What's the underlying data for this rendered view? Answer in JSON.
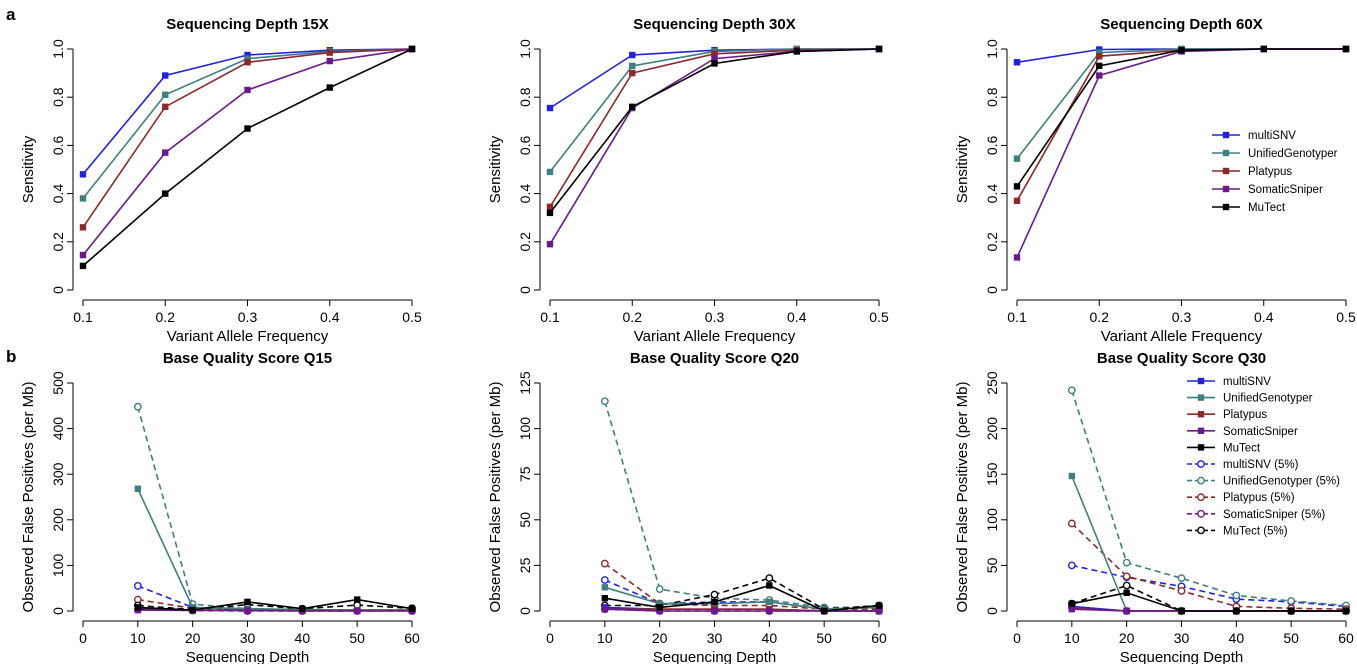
{
  "figure": {
    "panel_a_letter": "a",
    "panel_b_letter": "b"
  },
  "colors": {
    "multiSNV": "#2222dd",
    "UnifiedGenotyper": "#3f7f7f",
    "Platypus": "#8b2a2a",
    "SomaticSniper": "#6a1a8a",
    "MuTect": "#000000"
  },
  "chart_data": [
    {
      "type": "line",
      "title": "Sequencing Depth 15X",
      "xlabel": "Variant Allele Frequency",
      "ylabel": "Sensitivity",
      "x": [
        0.1,
        0.2,
        0.3,
        0.4,
        0.5
      ],
      "xticks": [
        "0.1",
        "0.2",
        "0.3",
        "0.4",
        "0.5"
      ],
      "xlim": [
        0.1,
        0.5
      ],
      "ylim": [
        0,
        1.0
      ],
      "yticks": [
        "0",
        "0.2",
        "0.4",
        "0.6",
        "0.8",
        "1.0"
      ],
      "legend": false,
      "series": [
        {
          "name": "multiSNV",
          "values": [
            0.48,
            0.89,
            0.975,
            0.995,
            1.0
          ]
        },
        {
          "name": "UnifiedGenotyper",
          "values": [
            0.38,
            0.81,
            0.96,
            0.99,
            1.0
          ]
        },
        {
          "name": "Platypus",
          "values": [
            0.26,
            0.76,
            0.945,
            0.985,
            1.0
          ]
        },
        {
          "name": "SomaticSniper",
          "values": [
            0.145,
            0.57,
            0.83,
            0.95,
            1.0
          ]
        },
        {
          "name": "MuTect",
          "values": [
            0.1,
            0.4,
            0.67,
            0.84,
            1.0
          ]
        }
      ]
    },
    {
      "type": "line",
      "title": "Sequencing Depth 30X",
      "xlabel": "Variant Allele Frequency",
      "ylabel": "Sensitivity",
      "x": [
        0.1,
        0.2,
        0.3,
        0.4,
        0.5
      ],
      "xticks": [
        "0.1",
        "0.2",
        "0.3",
        "0.4",
        "0.5"
      ],
      "xlim": [
        0.1,
        0.5
      ],
      "ylim": [
        0,
        1.0
      ],
      "yticks": [
        "0",
        "0.2",
        "0.4",
        "0.6",
        "0.8",
        "1.0"
      ],
      "legend": false,
      "series": [
        {
          "name": "multiSNV",
          "values": [
            0.755,
            0.975,
            0.995,
            1.0,
            1.0
          ]
        },
        {
          "name": "UnifiedGenotyper",
          "values": [
            0.49,
            0.93,
            0.99,
            1.0,
            1.0
          ]
        },
        {
          "name": "Platypus",
          "values": [
            0.345,
            0.9,
            0.98,
            0.995,
            1.0
          ]
        },
        {
          "name": "SomaticSniper",
          "values": [
            0.19,
            0.755,
            0.96,
            0.99,
            1.0
          ]
        },
        {
          "name": "MuTect",
          "values": [
            0.32,
            0.76,
            0.94,
            0.99,
            1.0
          ]
        }
      ]
    },
    {
      "type": "line",
      "title": "Sequencing Depth 60X",
      "xlabel": "Variant Allele Frequency",
      "ylabel": "Sensitivity",
      "x": [
        0.1,
        0.2,
        0.3,
        0.4,
        0.5
      ],
      "xticks": [
        "0.1",
        "0.2",
        "0.3",
        "0.4",
        "0.5"
      ],
      "xlim": [
        0.1,
        0.5
      ],
      "ylim": [
        0,
        1.0
      ],
      "yticks": [
        "0",
        "0.2",
        "0.4",
        "0.6",
        "0.8",
        "1.0"
      ],
      "legend": true,
      "legend_placement": "center-right",
      "series": [
        {
          "name": "multiSNV",
          "values": [
            0.945,
            0.998,
            1.0,
            1.0,
            1.0
          ]
        },
        {
          "name": "UnifiedGenotyper",
          "values": [
            0.545,
            0.985,
            1.0,
            1.0,
            1.0
          ]
        },
        {
          "name": "Platypus",
          "values": [
            0.37,
            0.97,
            0.995,
            1.0,
            1.0
          ]
        },
        {
          "name": "SomaticSniper",
          "values": [
            0.135,
            0.89,
            0.99,
            1.0,
            1.0
          ]
        },
        {
          "name": "MuTect",
          "values": [
            0.43,
            0.93,
            0.995,
            1.0,
            1.0
          ]
        }
      ]
    },
    {
      "type": "line",
      "title": "Base Quality Score Q15",
      "xlabel": "Sequencing Depth",
      "ylabel": "Observed False Positives (per Mb)",
      "x": [
        10,
        20,
        30,
        40,
        50,
        60
      ],
      "xlim": [
        0,
        60
      ],
      "xticks": [
        "0",
        "10",
        "20",
        "30",
        "40",
        "50",
        "60"
      ],
      "ylim": [
        0,
        500
      ],
      "yticks": [
        "0",
        "100",
        "200",
        "300",
        "400",
        "500"
      ],
      "legend": false,
      "series": [
        {
          "name": "multiSNV",
          "style": "solid",
          "values": [
            5,
            2,
            1,
            1,
            1,
            1
          ]
        },
        {
          "name": "UnifiedGenotyper",
          "style": "solid",
          "values": [
            268,
            8,
            5,
            3,
            2,
            2
          ]
        },
        {
          "name": "Platypus",
          "style": "solid",
          "values": [
            3,
            2,
            1,
            1,
            1,
            1
          ]
        },
        {
          "name": "SomaticSniper",
          "style": "solid",
          "values": [
            2,
            1,
            1,
            0,
            0,
            0
          ]
        },
        {
          "name": "MuTect",
          "style": "solid",
          "values": [
            8,
            2,
            20,
            5,
            25,
            5
          ]
        },
        {
          "name": "multiSNV (5%)",
          "style": "dashed",
          "values": [
            55,
            8,
            3,
            2,
            2,
            2
          ]
        },
        {
          "name": "UnifiedGenotyper (5%)",
          "style": "dashed",
          "values": [
            448,
            15,
            5,
            3,
            2,
            2
          ]
        },
        {
          "name": "Platypus (5%)",
          "style": "dashed",
          "values": [
            25,
            6,
            3,
            2,
            2,
            2
          ]
        },
        {
          "name": "SomaticSniper (5%)",
          "style": "dashed",
          "values": [
            3,
            1,
            0,
            0,
            0,
            0
          ]
        },
        {
          "name": "MuTect (5%)",
          "style": "dashed",
          "values": [
            12,
            3,
            14,
            5,
            13,
            6
          ]
        }
      ]
    },
    {
      "type": "line",
      "title": "Base Quality Score Q20",
      "xlabel": "Sequencing Depth",
      "ylabel": "Observed False Positives (per Mb)",
      "x": [
        10,
        20,
        30,
        40,
        50,
        60
      ],
      "xlim": [
        0,
        60
      ],
      "xticks": [
        "0",
        "10",
        "20",
        "30",
        "40",
        "50",
        "60"
      ],
      "ylim": [
        0,
        125
      ],
      "yticks": [
        "0",
        "25",
        "50",
        "75",
        "100",
        "125"
      ],
      "legend": false,
      "series": [
        {
          "name": "multiSNV",
          "style": "solid",
          "values": [
            2,
            1,
            1,
            1,
            0,
            0
          ]
        },
        {
          "name": "UnifiedGenotyper",
          "style": "solid",
          "values": [
            13,
            4,
            4,
            5,
            1,
            2
          ]
        },
        {
          "name": "Platypus",
          "style": "solid",
          "values": [
            1,
            1,
            1,
            1,
            0,
            0
          ]
        },
        {
          "name": "SomaticSniper",
          "style": "solid",
          "values": [
            1,
            0,
            0,
            0,
            0,
            0
          ]
        },
        {
          "name": "MuTect",
          "style": "solid",
          "values": [
            7,
            2,
            5,
            14,
            0,
            3
          ]
        },
        {
          "name": "multiSNV (5%)",
          "style": "dashed",
          "values": [
            17,
            4,
            5,
            5,
            1,
            2
          ]
        },
        {
          "name": "UnifiedGenotyper (5%)",
          "style": "dashed",
          "values": [
            115,
            12,
            7,
            6,
            2,
            2
          ]
        },
        {
          "name": "Platypus (5%)",
          "style": "dashed",
          "values": [
            26,
            4,
            3,
            3,
            1,
            1
          ]
        },
        {
          "name": "SomaticSniper (5%)",
          "style": "dashed",
          "values": [
            1,
            0,
            0,
            0,
            0,
            0
          ]
        },
        {
          "name": "MuTect (5%)",
          "style": "dashed",
          "values": [
            3,
            3,
            9,
            18,
            1,
            3
          ]
        }
      ]
    },
    {
      "type": "line",
      "title": "Base Quality Score Q30",
      "xlabel": "Sequencing Depth",
      "ylabel": "Observed False Positives (per Mb)",
      "x": [
        10,
        20,
        30,
        40,
        50,
        60
      ],
      "xlim": [
        0,
        60
      ],
      "xticks": [
        "0",
        "10",
        "20",
        "30",
        "40",
        "50",
        "60"
      ],
      "ylim": [
        0,
        250
      ],
      "yticks": [
        "0",
        "50",
        "100",
        "150",
        "200",
        "250"
      ],
      "legend": true,
      "legend_placement": "top-right",
      "series": [
        {
          "name": "multiSNV",
          "style": "solid",
          "values": [
            5,
            0,
            0,
            0,
            0,
            0
          ]
        },
        {
          "name": "UnifiedGenotyper",
          "style": "solid",
          "values": [
            148,
            0,
            0,
            0,
            0,
            0
          ]
        },
        {
          "name": "Platypus",
          "style": "solid",
          "values": [
            3,
            0,
            0,
            0,
            0,
            0
          ]
        },
        {
          "name": "SomaticSniper",
          "style": "solid",
          "values": [
            2,
            0,
            0,
            0,
            0,
            0
          ]
        },
        {
          "name": "MuTect",
          "style": "solid",
          "values": [
            8,
            20,
            0,
            0,
            0,
            0
          ]
        },
        {
          "name": "multiSNV (5%)",
          "style": "dashed",
          "values": [
            50,
            37,
            27,
            13,
            10,
            5
          ]
        },
        {
          "name": "UnifiedGenotyper (5%)",
          "style": "dashed",
          "values": [
            242,
            53,
            36,
            17,
            11,
            6
          ]
        },
        {
          "name": "Platypus (5%)",
          "style": "dashed",
          "values": [
            96,
            38,
            22,
            5,
            3,
            2
          ]
        },
        {
          "name": "SomaticSniper (5%)",
          "style": "dashed",
          "values": [
            4,
            0,
            0,
            0,
            0,
            0
          ]
        },
        {
          "name": "MuTect (5%)",
          "style": "dashed",
          "values": [
            8,
            28,
            0,
            0,
            0,
            0
          ]
        }
      ]
    }
  ]
}
